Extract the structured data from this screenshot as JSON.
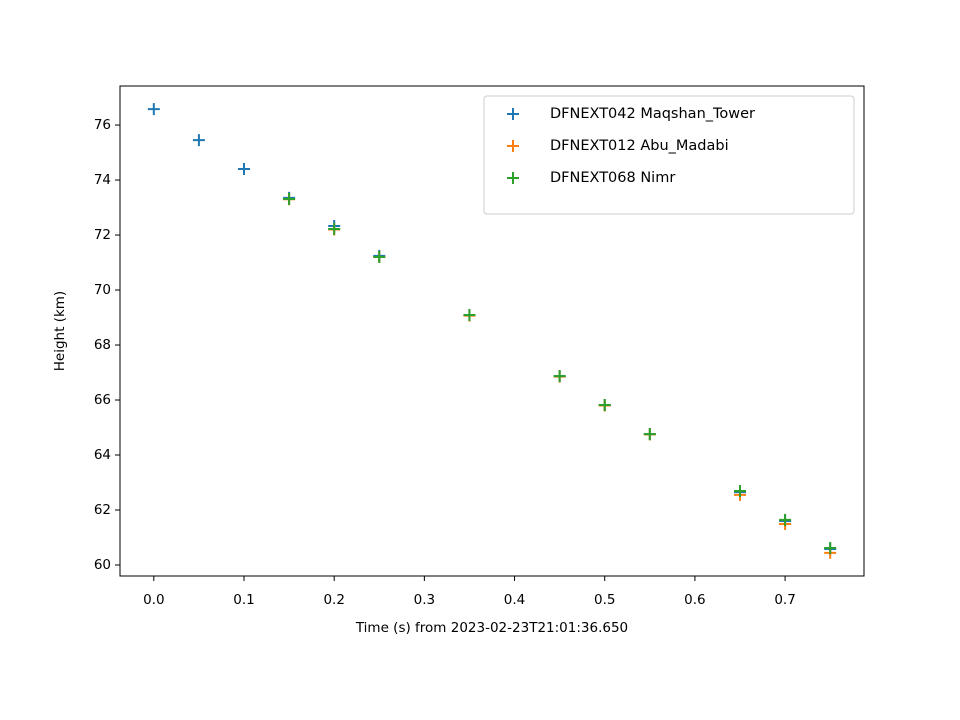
{
  "chart_data": {
    "type": "scatter",
    "xlabel": "Time (s) from 2023-02-23T21:01:36.650",
    "ylabel": "Height (km)",
    "xlim": [
      -0.0375,
      0.7875
    ],
    "ylim": [
      59.6,
      77.42
    ],
    "xticks": [
      {
        "value": 0,
        "label": "0.0"
      },
      0.1,
      0.2,
      0.3,
      0.4,
      0.5,
      0.6,
      0.7
    ],
    "yticks": [
      60,
      62,
      64,
      66,
      68,
      70,
      72,
      74,
      76
    ],
    "marker": "+",
    "legend": "upper right",
    "series": [
      {
        "name": "DFNEXT042 Maqshan_Tower",
        "color": "#1f77b4",
        "x": [
          0,
          0.05,
          0.1,
          0.15,
          0.2,
          0.25,
          0.35,
          0.45,
          0.5,
          0.55,
          0.65,
          0.7,
          0.75
        ],
        "values": [
          76.58,
          75.45,
          74.4,
          73.35,
          72.33,
          71.24,
          69.09,
          66.87,
          65.82,
          64.76,
          62.65,
          61.6,
          60.58
        ]
      },
      {
        "name": "DFNEXT012 Abu_Madabi",
        "color": "#ff7f0e",
        "x": [
          0.15,
          0.2,
          0.25,
          0.35,
          0.45,
          0.5,
          0.55,
          0.65,
          0.7,
          0.75
        ],
        "values": [
          73.3,
          72.2,
          71.2,
          69.07,
          66.85,
          65.8,
          64.75,
          62.55,
          61.49,
          60.44
        ]
      },
      {
        "name": "DFNEXT068 Nimr",
        "color": "#2ca02c",
        "x": [
          0.15,
          0.2,
          0.25,
          0.35,
          0.45,
          0.5,
          0.55,
          0.65,
          0.7,
          0.75
        ],
        "values": [
          73.31,
          72.22,
          71.2,
          69.09,
          66.87,
          65.82,
          64.76,
          62.69,
          61.64,
          60.62
        ]
      }
    ]
  }
}
